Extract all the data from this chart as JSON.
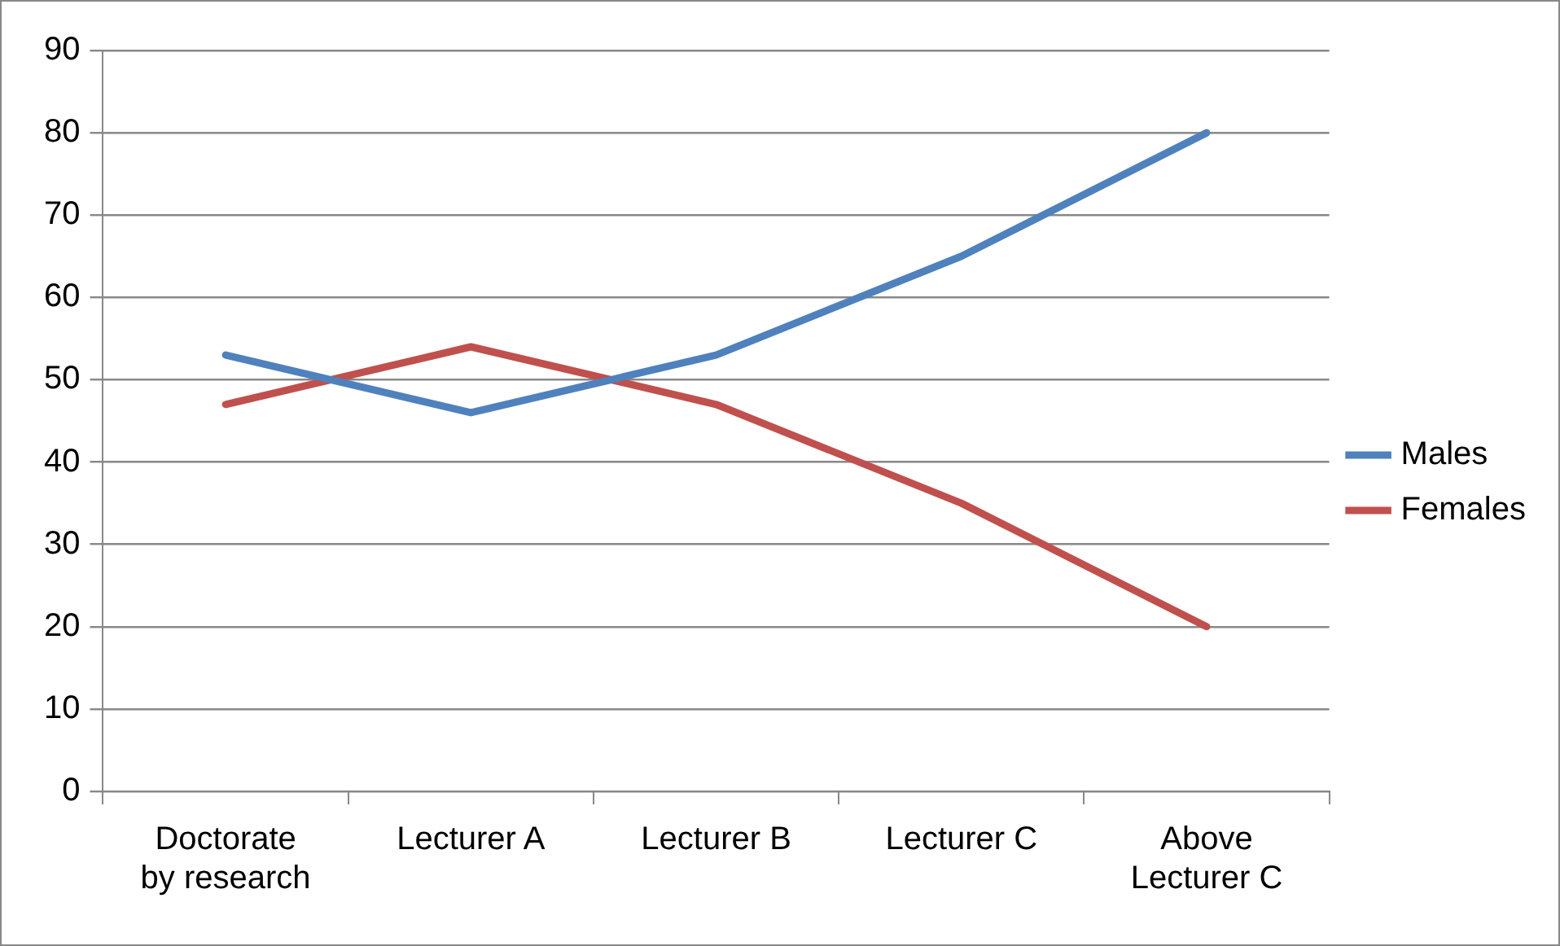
{
  "chart_data": {
    "type": "line",
    "categories": [
      "Doctorate by research",
      "Lecturer A",
      "Lecturer B",
      "Lecturer C",
      "Above Lecturer C"
    ],
    "series": [
      {
        "name": "Males",
        "color": "#4f81bd",
        "values": [
          53,
          46,
          53,
          65,
          80
        ]
      },
      {
        "name": "Females",
        "color": "#c0504d",
        "values": [
          47,
          54,
          47,
          35,
          20
        ]
      }
    ],
    "ylim": [
      0,
      90
    ],
    "yticks": [
      0,
      10,
      20,
      30,
      40,
      50,
      60,
      70,
      80,
      90
    ],
    "grid": "y",
    "legend": "right",
    "marker": "none",
    "line_style": "solid"
  }
}
